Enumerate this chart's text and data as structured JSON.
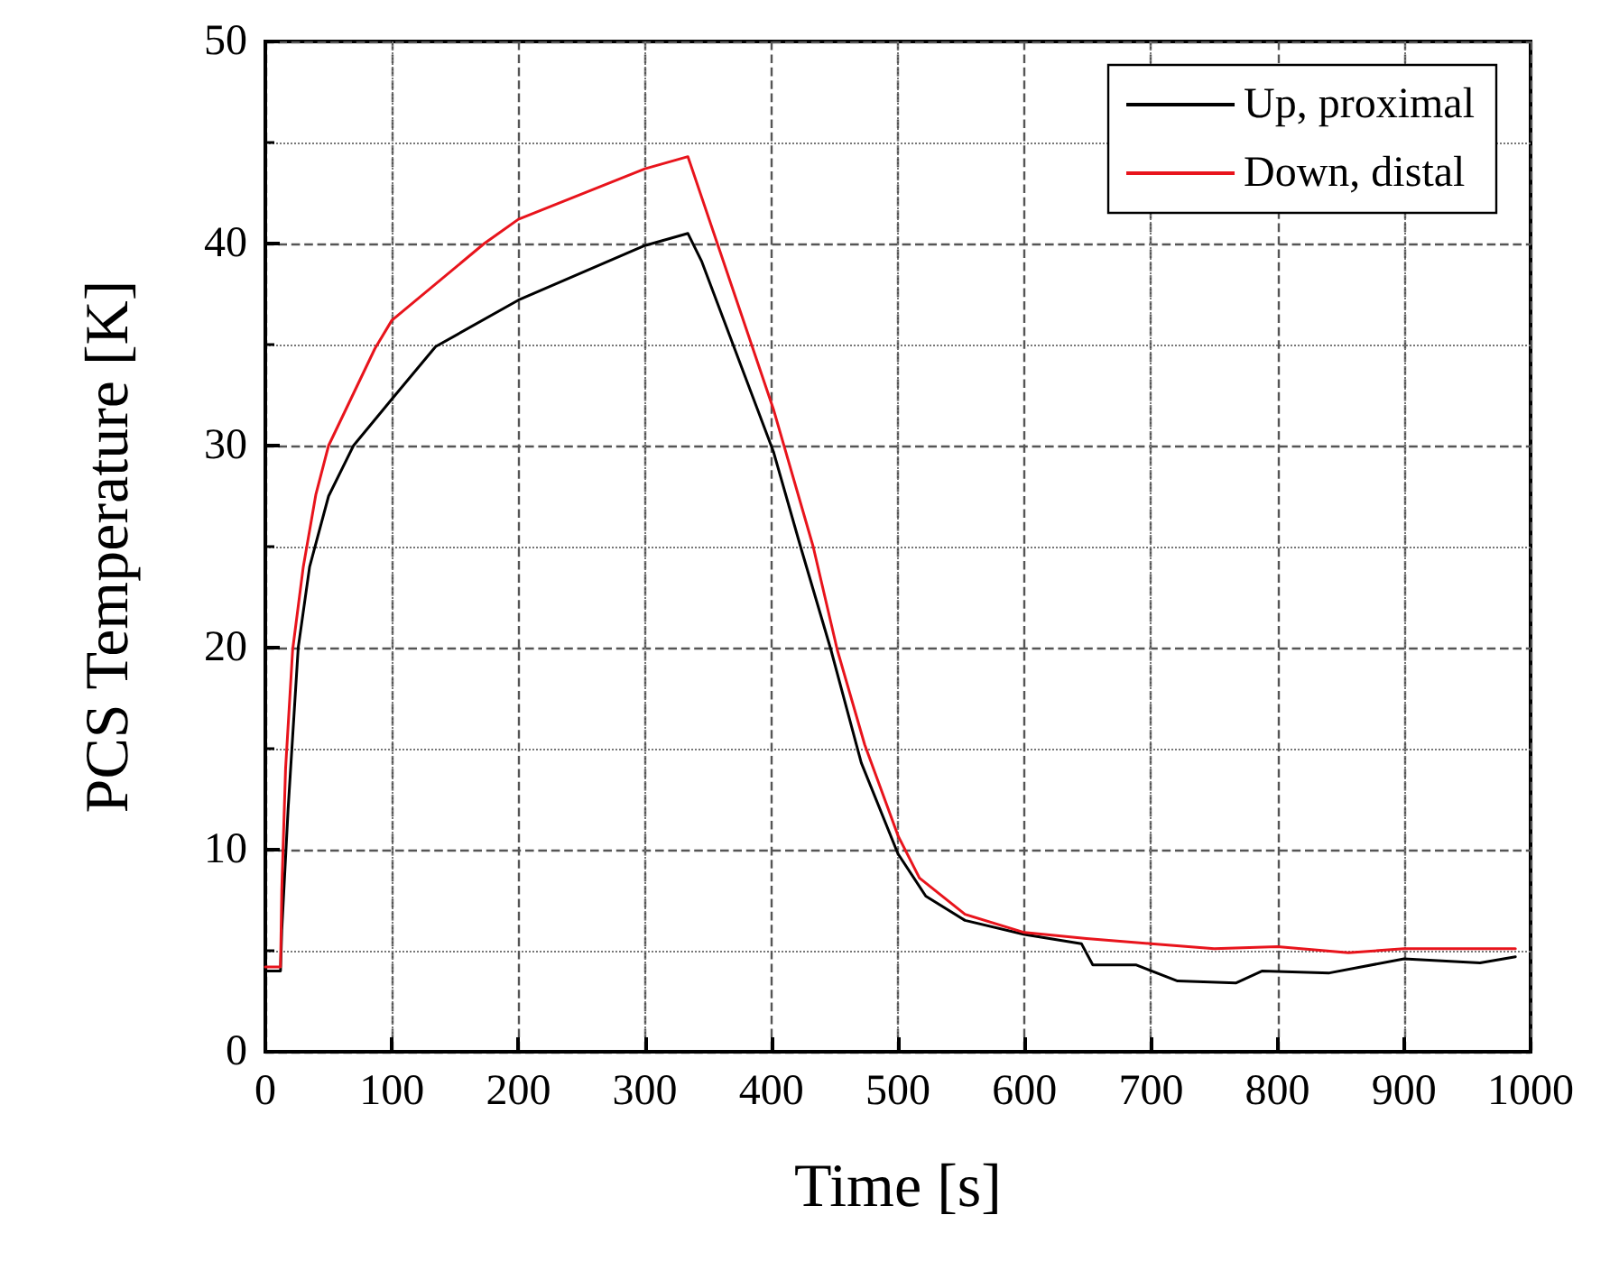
{
  "chart_data": {
    "type": "line",
    "xlabel": "Time [s]",
    "ylabel": "PCS Temperature [K]",
    "xlim": [
      0,
      1000
    ],
    "xticks": [
      0,
      100,
      200,
      300,
      400,
      500,
      600,
      700,
      800,
      900,
      1000
    ],
    "ylim": [
      0,
      50
    ],
    "yticks": [
      0,
      10,
      20,
      30,
      40,
      50
    ],
    "grid": true,
    "legend": "top right",
    "marker": "none",
    "line_style": "solid",
    "series": [
      {
        "name": "Up, proximal",
        "color": "#000000",
        "x": [
          0,
          12,
          13,
          18,
          26,
          35,
          50,
          69.7,
          100,
          134.6,
          200,
          300,
          334,
          345,
          401.6,
          423,
          447,
          471,
          500,
          522,
          553,
          600,
          645,
          654,
          688,
          721,
          767,
          788,
          841,
          900,
          960,
          988
        ],
        "values": [
          4.0,
          4.0,
          6,
          12,
          20,
          24,
          27.5,
          30,
          32.3,
          34.9,
          37.2,
          39.9,
          40.5,
          39.1,
          29.7,
          25,
          19.9,
          14.3,
          9.8,
          7.7,
          6.5,
          5.8,
          5.35,
          4.3,
          4.3,
          3.5,
          3.4,
          4.0,
          3.9,
          4.6,
          4.4,
          4.7
        ]
      },
      {
        "name": "Down, distal",
        "color": "#e8141c",
        "x": [
          0,
          12,
          13,
          16,
          21.6,
          30,
          40,
          50,
          86.6,
          100,
          173,
          200,
          300,
          334,
          401.6,
          433,
          452,
          473.7,
          500,
          517,
          553,
          600,
          649,
          700,
          750,
          800,
          856,
          900,
          988
        ],
        "values": [
          4.2,
          4.2,
          8,
          14,
          19.9,
          24,
          27.6,
          30,
          34.8,
          36.2,
          40,
          41.2,
          43.7,
          44.3,
          31.8,
          25,
          19.9,
          15.2,
          10.7,
          8.6,
          6.8,
          5.9,
          5.6,
          5.35,
          5.1,
          5.2,
          4.9,
          5.1,
          5.1
        ]
      }
    ]
  }
}
